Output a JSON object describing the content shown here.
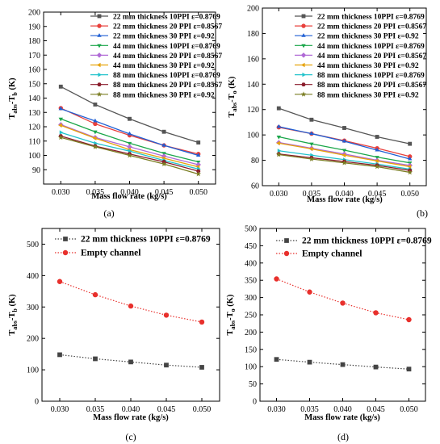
{
  "chart_data": [
    {
      "type": "line",
      "panel_label": "(a)",
      "xlabel": "Mass flow rate (kg/s)",
      "ylabel": "T_abs-T_b (K)",
      "x": [
        0.03,
        0.035,
        0.04,
        0.045,
        0.05
      ],
      "xlim": [
        0.0275,
        0.0525
      ],
      "ylim": [
        80,
        200
      ],
      "yticks": [
        90,
        100,
        110,
        120,
        130,
        140,
        150,
        160,
        170,
        180,
        190,
        200
      ],
      "xticks": [
        "0.030",
        "0.035",
        "0.040",
        "0.045",
        "0.050"
      ],
      "legend_position": "top-right",
      "series": [
        {
          "name": "22 mm thickness 10PPI ε=0.8769",
          "color": "#555555",
          "marker": "square",
          "values": [
            148,
            135.5,
            125.5,
            116.5,
            109
          ]
        },
        {
          "name": "22 mm thickness 20 PPI ε=0.8567",
          "color": "#e8403c",
          "marker": "circle",
          "values": [
            133,
            122,
            114,
            107,
            101
          ]
        },
        {
          "name": "22 mm thickness 30 PPI ε=0.92",
          "color": "#1f5fd4",
          "marker": "triangle-up",
          "values": [
            132.5,
            124,
            115,
            107,
            100
          ]
        },
        {
          "name": "44 mm thickness 10PPI ε=0.8769",
          "color": "#1aa64a",
          "marker": "triangle-down",
          "values": [
            125.5,
            116.5,
            108.5,
            101.5,
            95.5
          ]
        },
        {
          "name": "44 mm thickness 20 PPI ε=0.8567",
          "color": "#b06ad6",
          "marker": "diamond",
          "values": [
            121.5,
            112.5,
            106,
            99.5,
            93.5
          ]
        },
        {
          "name": "44 mm thickness 30 PPI ε=0.92",
          "color": "#e6a20a",
          "marker": "triangle-left",
          "values": [
            121,
            112,
            104,
            98,
            92
          ]
        },
        {
          "name": "88 mm thickness 10PPI ε=0.8769",
          "color": "#22c3cc",
          "marker": "triangle-right",
          "values": [
            116,
            108.5,
            103,
            96.5,
            90.5
          ]
        },
        {
          "name": "88 mm thickness 20 PPI ε=0.8567",
          "color": "#8a1c2b",
          "marker": "hexagon",
          "values": [
            113.5,
            106.5,
            101,
            95.5,
            89
          ]
        },
        {
          "name": "88 mm thickness 30 PPI ε=0.92",
          "color": "#7a7d22",
          "marker": "star",
          "values": [
            112.5,
            106,
            100,
            94,
            87
          ]
        }
      ]
    },
    {
      "type": "line",
      "panel_label": "(b)",
      "xlabel": "Mass flow rate (kg/s)",
      "ylabel": "T_abs-T_o (K)",
      "x": [
        0.03,
        0.035,
        0.04,
        0.045,
        0.05
      ],
      "xlim": [
        0.0275,
        0.0525
      ],
      "ylim": [
        60,
        200
      ],
      "yticks": [
        60,
        80,
        100,
        120,
        140,
        160,
        180,
        200
      ],
      "xticks": [
        "0.030",
        "0.035",
        "0.040",
        "0.045",
        "0.050"
      ],
      "legend_position": "top-right",
      "series": [
        {
          "name": "22 mm thickness 10PPI ε=0.8769",
          "color": "#555555",
          "marker": "square",
          "values": [
            121,
            112,
            105.5,
            98.5,
            93
          ]
        },
        {
          "name": "22 mm thickness 20 PPI ε=0.8567",
          "color": "#e8403c",
          "marker": "circle",
          "values": [
            106,
            101,
            95.5,
            89.5,
            83
          ]
        },
        {
          "name": "22 mm thickness 30 PPI ε=0.92",
          "color": "#1f5fd4",
          "marker": "triangle-up",
          "values": [
            106.5,
            101,
            95,
            88,
            81
          ]
        },
        {
          "name": "44 mm thickness 10PPI ε=0.8769",
          "color": "#1aa64a",
          "marker": "triangle-down",
          "values": [
            98.5,
            93,
            88,
            82.5,
            78
          ]
        },
        {
          "name": "44 mm thickness 20 PPI ε=0.8567",
          "color": "#b06ad6",
          "marker": "diamond",
          "values": [
            94,
            89.5,
            85,
            80,
            76
          ]
        },
        {
          "name": "44 mm thickness 30 PPI ε=0.92",
          "color": "#e6a20a",
          "marker": "triangle-left",
          "values": [
            93.5,
            89,
            84,
            79.5,
            75
          ]
        },
        {
          "name": "88 mm thickness 10PPI ε=0.8769",
          "color": "#22c3cc",
          "marker": "triangle-right",
          "values": [
            87.5,
            84,
            80.5,
            77,
            73
          ]
        },
        {
          "name": "88 mm thickness 20 PPI ε=0.8567",
          "color": "#8a1c2b",
          "marker": "hexagon",
          "values": [
            85,
            82,
            79,
            76,
            72
          ]
        },
        {
          "name": "88 mm thickness 30 PPI ε=0.92",
          "color": "#7a7d22",
          "marker": "star",
          "values": [
            84.5,
            81,
            78,
            75,
            70.5
          ]
        }
      ]
    },
    {
      "type": "line",
      "panel_label": "(c)",
      "xlabel": "Mass flow rate (kg/s)",
      "ylabel": "T_abs-T_b (K)",
      "x": [
        0.03,
        0.035,
        0.04,
        0.045,
        0.05
      ],
      "xlim": [
        0.0275,
        0.0525
      ],
      "ylim": [
        0,
        550
      ],
      "yticks": [
        0,
        100,
        200,
        300,
        400,
        500
      ],
      "xticks": [
        "0.030",
        "0.035",
        "0.040",
        "0.045",
        "0.050"
      ],
      "legend_position": "top-left",
      "series": [
        {
          "name": "22 mm thickness 10PPI ε=0.8769",
          "color": "#444444",
          "marker": "square",
          "line": "dotted",
          "values": [
            148,
            135,
            125,
            115,
            108
          ]
        },
        {
          "name": "Empty channel",
          "color": "#e8302c",
          "marker": "circle",
          "line": "dotted",
          "values": [
            381,
            339,
            303,
            274,
            252
          ]
        }
      ]
    },
    {
      "type": "line",
      "panel_label": "(d)",
      "xlabel": "Mass flow rate (kg/s)",
      "ylabel": "T_abs-T_o (K)",
      "x": [
        0.03,
        0.035,
        0.04,
        0.045,
        0.05
      ],
      "xlim": [
        0.0275,
        0.0525
      ],
      "ylim": [
        0,
        500
      ],
      "yticks": [
        0,
        50,
        100,
        150,
        200,
        250,
        300,
        350,
        400,
        450,
        500
      ],
      "xticks": [
        "0.030",
        "0.035",
        "0.040",
        "0.045",
        "0.050"
      ],
      "legend_position": "top-left",
      "series": [
        {
          "name": "22 mm thickness 10PPI ε=0.8769",
          "color": "#444444",
          "marker": "square",
          "line": "dotted",
          "values": [
            121,
            113,
            106,
            99,
            93
          ]
        },
        {
          "name": "Empty channel",
          "color": "#e8302c",
          "marker": "circle",
          "line": "dotted",
          "values": [
            354,
            316,
            284,
            256,
            236
          ]
        }
      ]
    }
  ]
}
